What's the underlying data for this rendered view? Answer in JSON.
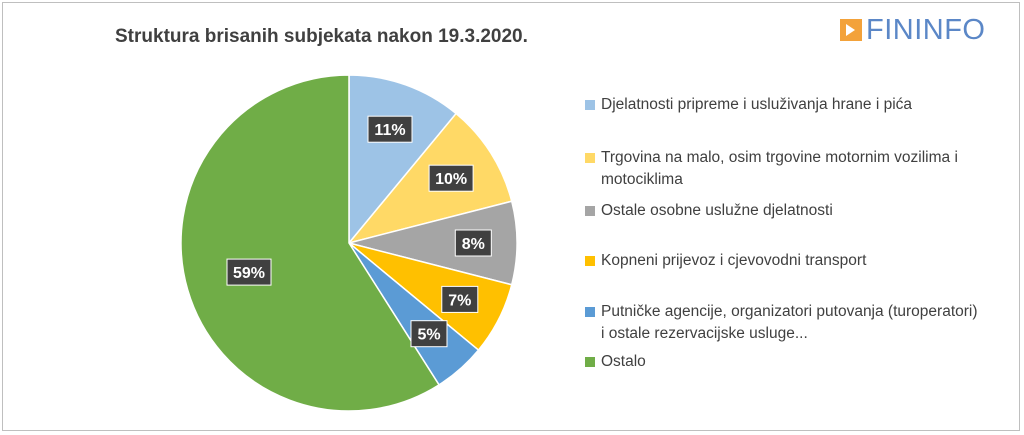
{
  "chart_data": {
    "type": "pie",
    "title": "Struktura brisanih subjekata nakon 19.3.2020.",
    "slices": [
      {
        "label": "Djelatnosti pripreme i usluživanja hrane i pića",
        "value": 11,
        "data_label": "11%",
        "color": "#9dc3e6"
      },
      {
        "label": "Trgovina na malo, osim trgovine motornim vozilima i motociklima",
        "value": 10,
        "data_label": "10%",
        "color": "#ffd966"
      },
      {
        "label": "Ostale osobne uslužne djelatnosti",
        "value": 8,
        "data_label": "8%",
        "color": "#a5a5a5"
      },
      {
        "label": "Kopneni prijevoz i cjevovodni transport",
        "value": 7,
        "data_label": "7%",
        "color": "#ffc000"
      },
      {
        "label": "Putničke agencije, organizatori putovanja (turoperatori) i ostale rezervacijske usluge...",
        "value": 5,
        "data_label": "5%",
        "color": "#5b9bd5"
      },
      {
        "label": "Ostalo",
        "value": 59,
        "data_label": "59%",
        "color": "#70ad47"
      }
    ],
    "legend_position": "right"
  },
  "logo": {
    "text": "FININFO",
    "mark_color": "#f3a23a",
    "text_color": "#5b87c7"
  }
}
